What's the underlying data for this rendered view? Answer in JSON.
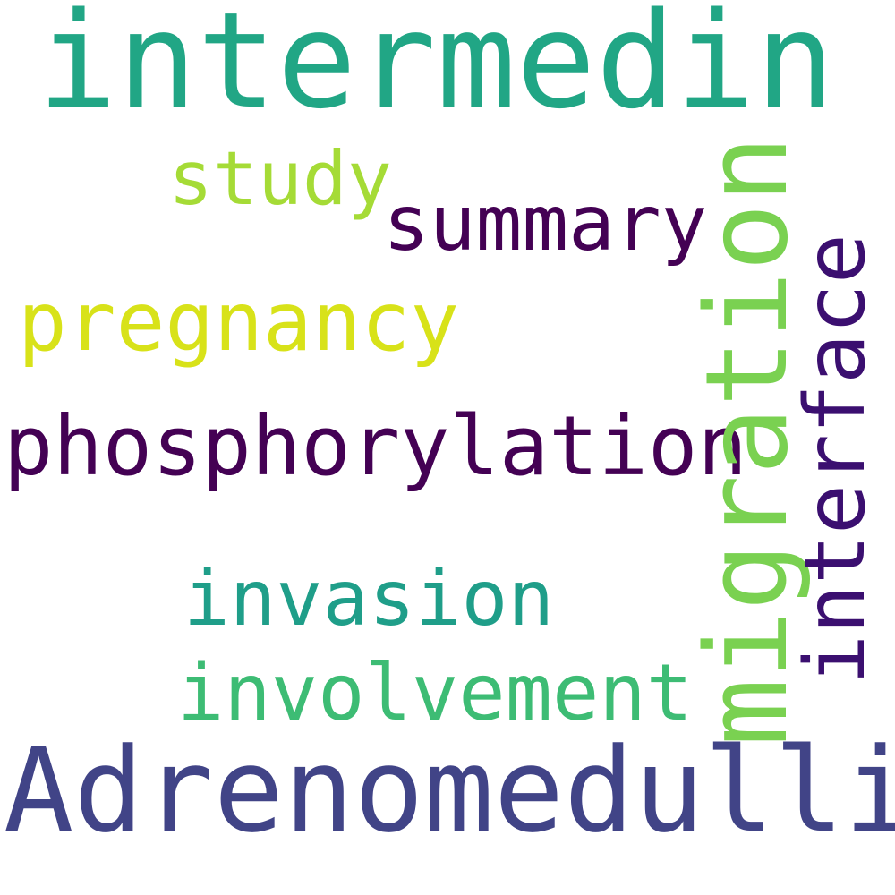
{
  "words": [
    {
      "key": "intermedin",
      "text": "intermedin",
      "color": "#21a685"
    },
    {
      "key": "study",
      "text": "study",
      "color": "#a5db36"
    },
    {
      "key": "summary",
      "text": "summary",
      "color": "#440154"
    },
    {
      "key": "pregnancy",
      "text": "pregnancy",
      "color": "#d8e219"
    },
    {
      "key": "phosphorylation",
      "text": "phosphorylation",
      "color": "#440154"
    },
    {
      "key": "migration",
      "text": "migration",
      "color": "#7ad151"
    },
    {
      "key": "interface",
      "text": "interface",
      "color": "#3b0f70"
    },
    {
      "key": "invasion",
      "text": "invasion",
      "color": "#1f9e89"
    },
    {
      "key": "involvement",
      "text": "involvement",
      "color": "#3dbc74"
    },
    {
      "key": "adrenomedullin",
      "text": "Adrenomedullin",
      "color": "#414487"
    }
  ]
}
